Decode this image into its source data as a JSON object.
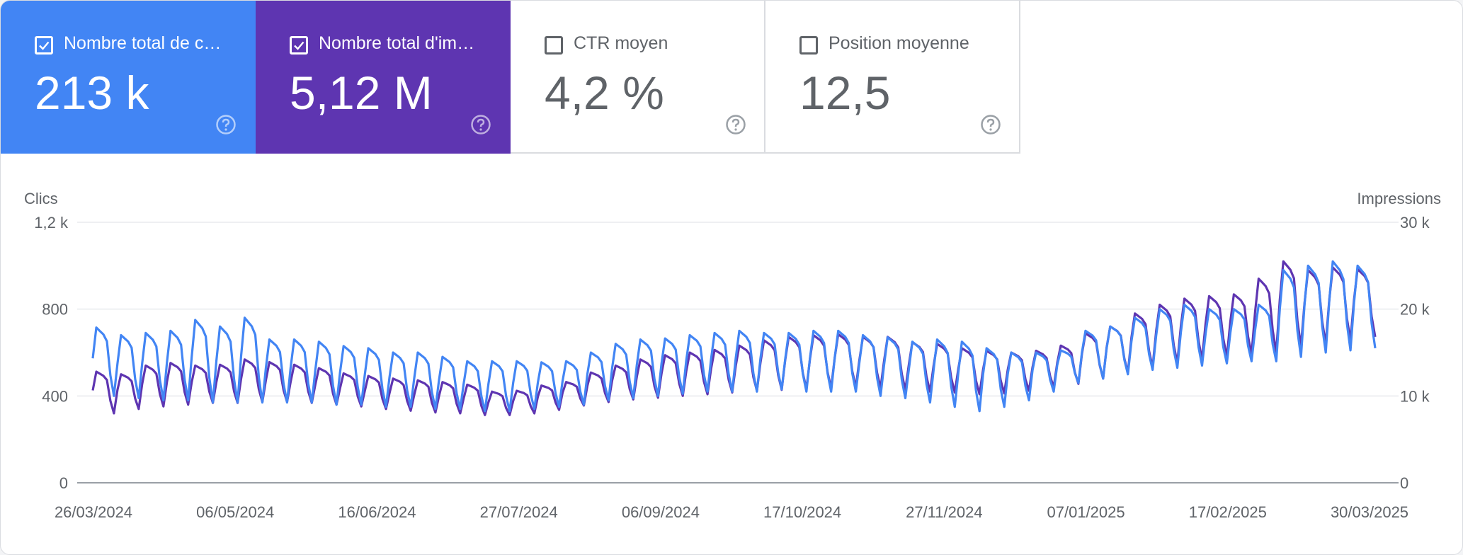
{
  "metrics": [
    {
      "label": "Nombre total de c…",
      "value": "213 k",
      "checked": true,
      "color": "#4285f4",
      "help_icon": "question-circle-icon"
    },
    {
      "label": "Nombre total d'im…",
      "value": "5,12 M",
      "checked": true,
      "color": "#5e35b1",
      "help_icon": "question-circle-icon"
    },
    {
      "label": "CTR moyen",
      "value": "4,2 %",
      "checked": false,
      "color": "#ffffff",
      "help_icon": "question-circle-icon"
    },
    {
      "label": "Position moyenne",
      "value": "12,5",
      "checked": false,
      "color": "#ffffff",
      "help_icon": "question-circle-icon"
    }
  ],
  "chart_data": {
    "type": "line",
    "y_left": {
      "label": "Clics",
      "ticks": [
        "0",
        "400",
        "800",
        "1,2 k"
      ],
      "range": [
        0,
        1200
      ]
    },
    "y_right": {
      "label": "Impressions",
      "ticks": [
        "0",
        "10 k",
        "20 k",
        "30 k"
      ],
      "range": [
        0,
        30000
      ]
    },
    "x_tick_labels": [
      "26/03/2024",
      "06/05/2024",
      "16/06/2024",
      "27/07/2024",
      "06/09/2024",
      "17/10/2024",
      "27/11/2024",
      "07/01/2025",
      "17/02/2025",
      "30/03/2025"
    ],
    "x_range": [
      "26/03/2024",
      "30/03/2025"
    ],
    "grid": true,
    "series": [
      {
        "key": "clics",
        "axis": "left",
        "color": "#4285f4",
        "weekly_high": [
          715,
          680,
          690,
          700,
          750,
          720,
          760,
          660,
          660,
          650,
          630,
          620,
          600,
          600,
          580,
          560,
          560,
          560,
          555,
          560,
          600,
          640,
          660,
          665,
          680,
          690,
          700,
          690,
          690,
          700,
          700,
          680,
          670,
          650,
          660,
          650,
          620,
          600,
          600,
          610,
          700,
          720,
          760,
          800,
          820,
          800,
          800,
          820,
          980,
          1000,
          1020,
          1000
        ],
        "weekly_low": [
          400,
          390,
          380,
          380,
          370,
          370,
          370,
          370,
          370,
          360,
          360,
          350,
          350,
          340,
          340,
          330,
          330,
          340,
          350,
          360,
          380,
          390,
          400,
          410,
          420,
          420,
          420,
          430,
          420,
          420,
          420,
          400,
          390,
          370,
          350,
          330,
          350,
          380,
          420,
          460,
          480,
          500,
          520,
          530,
          540,
          550,
          560,
          560,
          580,
          600,
          610,
          620
        ]
      },
      {
        "key": "impressions",
        "axis": "right",
        "color": "#5e35b1",
        "weekly_high": [
          12800,
          12500,
          13500,
          13800,
          13500,
          13600,
          14200,
          13900,
          13600,
          13200,
          12600,
          12300,
          12000,
          11800,
          11600,
          11300,
          10500,
          10600,
          11200,
          11600,
          12700,
          13500,
          14200,
          14700,
          15000,
          15300,
          15800,
          16400,
          16800,
          17000,
          17100,
          16800,
          16800,
          16200,
          16000,
          15500,
          15200,
          15000,
          15200,
          15800,
          17200,
          18000,
          19500,
          20500,
          21200,
          21500,
          21700,
          23500,
          25500,
          24500,
          24800,
          24600
        ],
        "weekly_low": [
          8000,
          8500,
          8800,
          9000,
          9200,
          9200,
          9300,
          9300,
          9200,
          9000,
          8800,
          8500,
          8300,
          8100,
          8000,
          7800,
          7800,
          8000,
          8400,
          8900,
          9300,
          9600,
          9800,
          10000,
          10200,
          10400,
          10600,
          10700,
          10800,
          10900,
          11000,
          10900,
          10700,
          10500,
          10400,
          10200,
          10300,
          10600,
          11000,
          11400,
          12000,
          12700,
          13300,
          13800,
          14200,
          14500,
          14800,
          15000,
          15700,
          16000,
          16400,
          16800
        ]
      }
    ]
  }
}
